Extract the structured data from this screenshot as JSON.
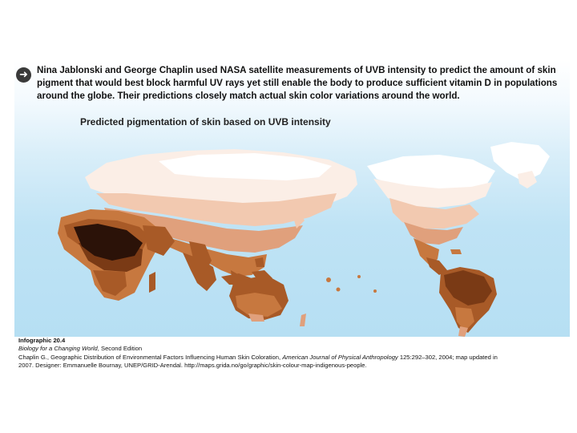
{
  "intro_text": "Nina Jablonski and George Chaplin used NASA satellite measurements of UVB intensity to predict the amount of skin pigment that would best block harmful UV rays yet still enable the body to produce sufficient vitamin D in populations around the globe. Their predictions closely match actual skin color variations around the world.",
  "map_title": "Predicted pigmentation of skin based on UVB intensity",
  "colors": {
    "ocean": "#bde3f5",
    "pigment_very_light": "#fbeee6",
    "pigment_light": "#f2c9b0",
    "pigment_medium_light": "#e0a07c",
    "pigment_medium": "#c7783f",
    "pigment_medium_dark": "#a85a27",
    "pigment_dark": "#7a3a15",
    "pigment_very_dark": "#2b1208"
  },
  "caption": {
    "label": "Infographic 20.4",
    "book_title": "Biology for a Changing World",
    "book_edition": ", Second Edition",
    "citation_start": "Chaplin G., Geographic Distribution of Environmental Factors Influencing Human Skin Coloration, ",
    "journal": "American Journal of Physical Anthropology",
    "citation_end": " 125:292–302, 2004; map updated in",
    "citation_line2": "2007. Designer: Emmanuelle Bournay, UNEP/GRID-Arendal. http://maps.grida.no/go/graphic/skin-colour-map-indigenous-people."
  }
}
